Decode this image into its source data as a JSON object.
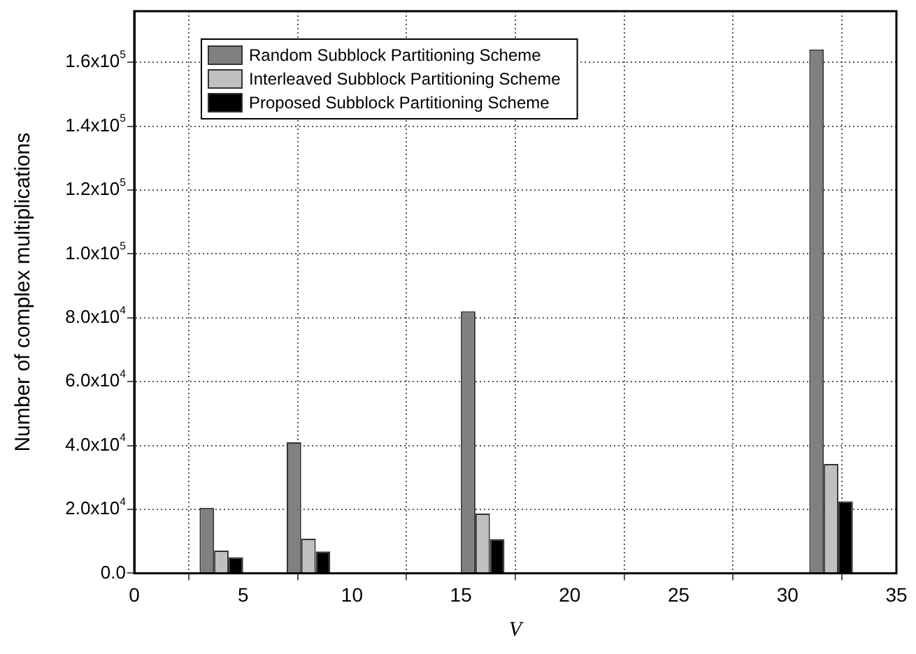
{
  "chart_data": {
    "type": "bar",
    "xlabel": "V",
    "ylabel": "Number of complex multiplications",
    "x": [
      4,
      8,
      16,
      32
    ],
    "series": [
      {
        "name": "Random Subblock Partitioning Scheme",
        "color": "#808080",
        "values": [
          20500,
          41000,
          82000,
          164000
        ]
      },
      {
        "name": "Interleaved Subblock Partitioning Scheme",
        "color": "#c0c0c0",
        "values": [
          7100,
          10800,
          18700,
          34200
        ]
      },
      {
        "name": "Proposed Subblock Partitioning Scheme",
        "color": "#000000",
        "values": [
          5000,
          6800,
          10700,
          22500
        ]
      }
    ],
    "xlim": [
      0,
      35
    ],
    "xticks": [
      0,
      5,
      10,
      15,
      20,
      25,
      30,
      35
    ],
    "ylim": [
      0,
      176000
    ],
    "yticks": [
      {
        "value": 0,
        "label": "0.0"
      },
      {
        "value": 20000,
        "label": "2.0x10$^{4}$"
      },
      {
        "value": 40000,
        "label": "4.0x10$^{4}$"
      },
      {
        "value": 60000,
        "label": "6.0x10$^{4}$"
      },
      {
        "value": 80000,
        "label": "8.0x10$^{4}$"
      },
      {
        "value": 100000,
        "label": "1.0x10$^{5}$"
      },
      {
        "value": 120000,
        "label": "1.2x10$^{5}$"
      },
      {
        "value": 140000,
        "label": "1.4x10$^{5}$"
      },
      {
        "value": 160000,
        "label": "1.6x10$^{5}$"
      }
    ],
    "grid": true,
    "legend": "top left"
  }
}
